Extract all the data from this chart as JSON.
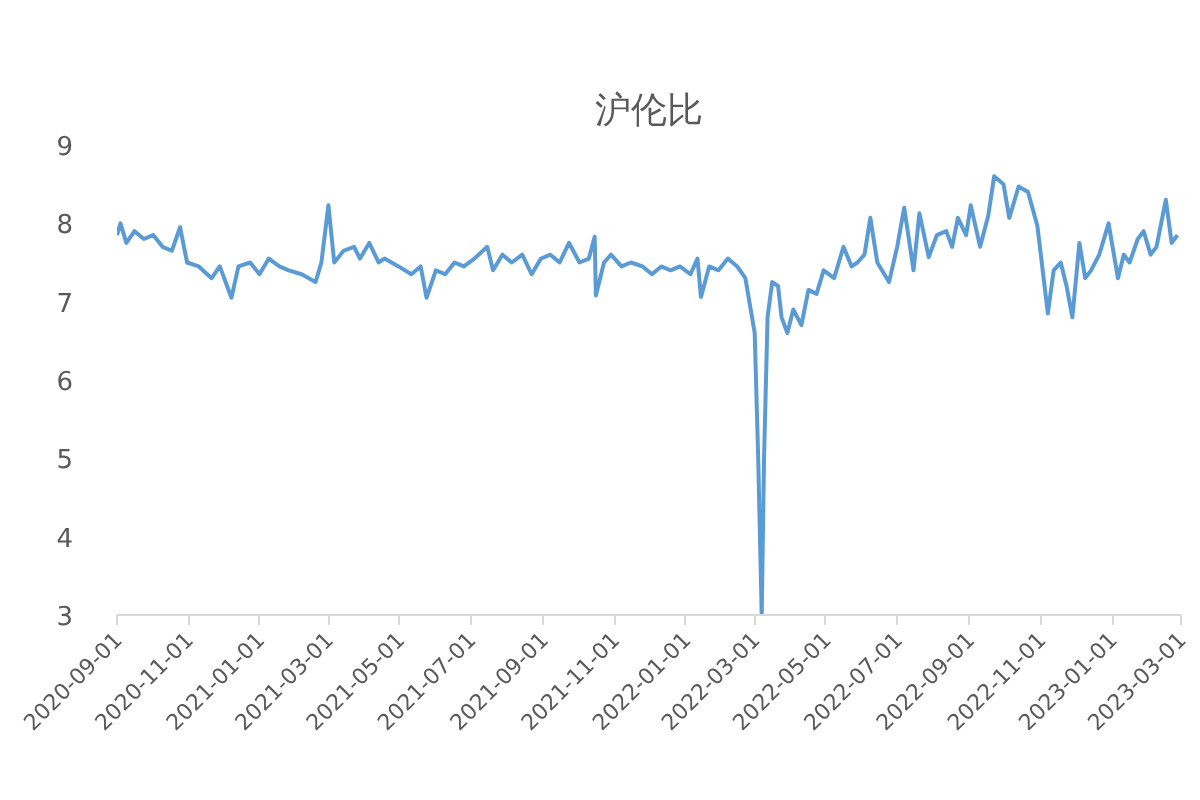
{
  "chart_data": {
    "type": "line",
    "title": "沪伦比",
    "x": [
      "2020-09-01",
      "2020-09-04",
      "2020-09-09",
      "2020-09-16",
      "2020-09-24",
      "2020-10-02",
      "2020-10-10",
      "2020-10-18",
      "2020-10-25",
      "2020-10-31",
      "2020-11-10",
      "2020-11-21",
      "2020-11-28",
      "2020-12-08",
      "2020-12-14",
      "2020-12-24",
      "2021-01-01",
      "2021-01-09",
      "2021-01-18",
      "2021-01-26",
      "2021-02-06",
      "2021-02-18",
      "2021-02-23",
      "2021-03-01",
      "2021-03-06",
      "2021-03-14",
      "2021-03-23",
      "2021-03-28",
      "2021-04-05",
      "2021-04-13",
      "2021-04-18",
      "2021-04-30",
      "2021-05-11",
      "2021-05-19",
      "2021-05-24",
      "2021-06-01",
      "2021-06-09",
      "2021-06-17",
      "2021-06-25",
      "2021-07-04",
      "2021-07-15",
      "2021-07-20",
      "2021-07-28",
      "2021-08-05",
      "2021-08-14",
      "2021-08-22",
      "2021-08-30",
      "2021-09-07",
      "2021-09-15",
      "2021-09-23",
      "2021-10-02",
      "2021-10-10",
      "2021-10-15",
      "2021-10-16",
      "2021-10-23",
      "2021-10-29",
      "2021-11-07",
      "2021-11-15",
      "2021-11-25",
      "2021-12-03",
      "2021-12-11",
      "2021-12-19",
      "2021-12-27",
      "2022-01-05",
      "2022-01-11",
      "2022-01-14",
      "2022-01-21",
      "2022-01-29",
      "2022-02-06",
      "2022-02-14",
      "2022-02-21",
      "2022-03-01",
      "2022-03-04",
      "2022-03-07",
      "2022-03-09",
      "2022-03-12",
      "2022-03-16",
      "2022-03-21",
      "2022-03-24",
      "2022-03-29",
      "2022-04-03",
      "2022-04-10",
      "2022-04-16",
      "2022-04-23",
      "2022-04-29",
      "2022-05-08",
      "2022-05-16",
      "2022-05-23",
      "2022-05-28",
      "2022-06-03",
      "2022-06-08",
      "2022-06-14",
      "2022-06-24",
      "2022-07-01",
      "2022-07-07",
      "2022-07-15",
      "2022-07-20",
      "2022-07-28",
      "2022-08-04",
      "2022-08-12",
      "2022-08-17",
      "2022-08-22",
      "2022-08-29",
      "2022-09-02",
      "2022-09-10",
      "2022-09-17",
      "2022-09-22",
      "2022-09-30",
      "2022-10-05",
      "2022-10-13",
      "2022-10-21",
      "2022-10-29",
      "2022-11-07",
      "2022-11-12",
      "2022-11-18",
      "2022-11-23",
      "2022-11-28",
      "2022-12-04",
      "2022-12-09",
      "2022-12-14",
      "2022-12-21",
      "2022-12-29",
      "2023-01-06",
      "2023-01-11",
      "2023-01-16",
      "2023-01-23",
      "2023-01-28",
      "2023-02-03",
      "2023-02-08",
      "2023-02-16",
      "2023-02-21",
      "2023-02-26"
    ],
    "series": [
      {
        "color": "#5b9bd5",
        "values": [
          7.85,
          8.0,
          7.75,
          7.9,
          7.8,
          7.85,
          7.7,
          7.65,
          7.95,
          7.5,
          7.45,
          7.3,
          7.45,
          7.05,
          7.45,
          7.5,
          7.35,
          7.55,
          7.45,
          7.4,
          7.35,
          7.25,
          7.5,
          8.23,
          7.5,
          7.65,
          7.7,
          7.55,
          7.75,
          7.5,
          7.55,
          7.45,
          7.35,
          7.45,
          7.05,
          7.4,
          7.35,
          7.5,
          7.45,
          7.55,
          7.7,
          7.4,
          7.6,
          7.5,
          7.6,
          7.35,
          7.55,
          7.6,
          7.5,
          7.75,
          7.5,
          7.55,
          7.83,
          7.08,
          7.5,
          7.6,
          7.45,
          7.5,
          7.45,
          7.35,
          7.45,
          7.4,
          7.45,
          7.35,
          7.55,
          7.06,
          7.45,
          7.4,
          7.55,
          7.45,
          7.3,
          6.6,
          5.0,
          3.0,
          5.0,
          6.8,
          7.25,
          7.2,
          6.8,
          6.6,
          6.9,
          6.7,
          7.15,
          7.1,
          7.4,
          7.3,
          7.7,
          7.45,
          7.5,
          7.6,
          8.07,
          7.5,
          7.25,
          7.7,
          8.2,
          7.4,
          8.13,
          7.57,
          7.85,
          7.9,
          7.7,
          8.07,
          7.85,
          8.23,
          7.7,
          8.1,
          8.6,
          8.5,
          8.07,
          8.47,
          8.4,
          7.97,
          6.85,
          7.4,
          7.5,
          7.2,
          6.8,
          7.75,
          7.3,
          7.4,
          7.6,
          8.0,
          7.3,
          7.6,
          7.5,
          7.8,
          7.9,
          7.6,
          7.7,
          8.3,
          7.75,
          7.85
        ]
      }
    ],
    "xlim": [
      "2020-09-01",
      "2023-03-01"
    ],
    "ylim": [
      3,
      9
    ],
    "xticks": [
      "2020-09-01",
      "2020-11-01",
      "2021-01-01",
      "2021-03-01",
      "2021-05-01",
      "2021-07-01",
      "2021-09-01",
      "2021-11-01",
      "2022-01-01",
      "2022-03-01",
      "2022-05-01",
      "2022-07-01",
      "2022-09-01",
      "2022-11-01",
      "2023-01-01",
      "2023-03-01"
    ],
    "yticks": [
      3,
      4,
      5,
      6,
      7,
      8,
      9
    ]
  }
}
